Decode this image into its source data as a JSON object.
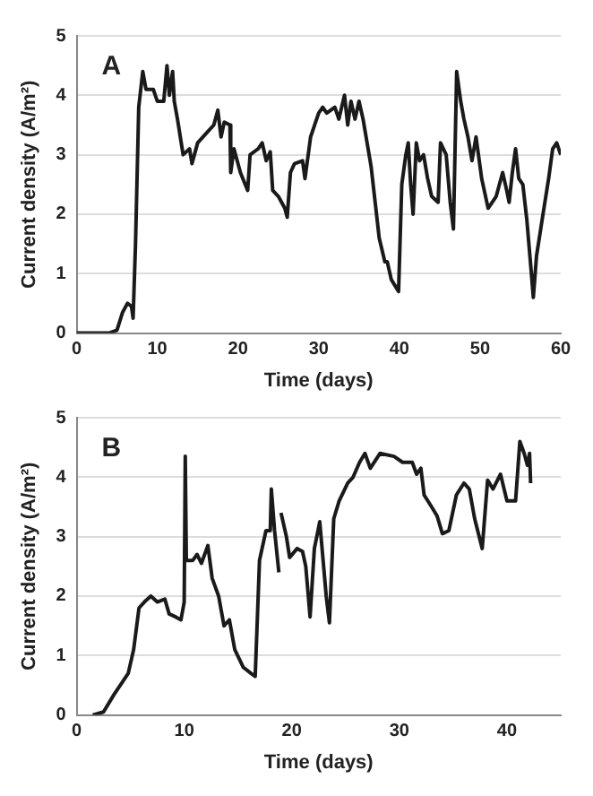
{
  "chart_data": [
    {
      "type": "line",
      "xlabel": "Time (days)",
      "ylabel": "Current density (A/m²)",
      "annotations": [
        "A"
      ],
      "xlim": [
        0,
        60
      ],
      "xticks": [
        0,
        10,
        20,
        30,
        40,
        50,
        60
      ],
      "ylim": [
        0,
        5
      ],
      "yticks": [
        0,
        1,
        2,
        3,
        4,
        5
      ],
      "grid": "y",
      "legend": false,
      "marker": "none",
      "line_style": "solid",
      "series": [
        {
          "color": "#1a1a1a",
          "x": [
            0,
            4,
            5,
            5.7,
            6.3,
            6.8,
            7,
            7.3,
            7.7,
            8.2,
            8.6,
            9.5,
            10,
            10.8,
            11.2,
            11.5,
            11.9,
            12.1,
            12.5,
            13.2,
            14,
            14.3,
            15,
            16,
            17,
            17.5,
            17.9,
            18.3,
            19,
            19.1,
            19.5,
            20.3,
            21.2,
            21.5,
            22.5,
            23,
            23.5,
            24,
            24.3,
            25,
            25.8,
            26.1,
            26.5,
            27,
            28,
            28.3,
            29,
            29.5,
            30,
            30.5,
            31,
            32,
            32.5,
            33.2,
            33.6,
            34,
            34.5,
            35,
            35.5,
            36.5,
            37.5,
            38.2,
            38.5,
            39,
            39.9,
            40.3,
            40.8,
            41.1,
            41.4,
            41.7,
            42.1,
            42.5,
            43,
            43.5,
            44,
            44.8,
            45.1,
            45.8,
            46.3,
            46.7,
            47.1,
            47.6,
            48,
            48.5,
            49,
            49.5,
            50.2,
            51,
            52,
            52.8,
            53.3,
            53.6,
            54,
            54.4,
            54.8,
            55.3,
            55.8,
            56.3,
            56.6,
            57,
            57.8,
            58.5,
            59,
            59.5,
            60
          ],
          "values": [
            0,
            0,
            0.05,
            0.35,
            0.5,
            0.45,
            0.25,
            1.5,
            3.8,
            4.4,
            4.1,
            4.1,
            3.9,
            3.9,
            4.5,
            4,
            4.4,
            3.9,
            3.6,
            3,
            3.1,
            2.85,
            3.2,
            3.35,
            3.5,
            3.75,
            3.3,
            3.55,
            3.5,
            2.7,
            3.1,
            2.7,
            2.4,
            3,
            3.1,
            3.2,
            2.9,
            3.05,
            2.4,
            2.3,
            2.1,
            1.95,
            2.7,
            2.85,
            2.9,
            2.6,
            3.3,
            3.5,
            3.7,
            3.8,
            3.7,
            3.8,
            3.6,
            4,
            3.5,
            3.9,
            3.6,
            3.9,
            3.6,
            2.8,
            1.6,
            1.2,
            1.2,
            0.9,
            0.7,
            2.5,
            3,
            3.2,
            2.5,
            2,
            3.2,
            2.9,
            3,
            2.6,
            2.3,
            2.2,
            3.2,
            3,
            2.2,
            1.75,
            4.4,
            3.9,
            3.6,
            3.3,
            2.9,
            3.3,
            2.6,
            2.1,
            2.3,
            2.7,
            2.4,
            2.2,
            2.7,
            3.1,
            2.6,
            2.5,
            1.9,
            1.1,
            0.6,
            1.3,
            2,
            2.6,
            3.1,
            3.2,
            3
          ]
        }
      ]
    },
    {
      "type": "line",
      "xlabel": "Time (days)",
      "ylabel": "Current density (A/m²)",
      "annotations": [
        "B"
      ],
      "xlim": [
        0,
        45
      ],
      "xticks": [
        0,
        10,
        20,
        30,
        40
      ],
      "ylim": [
        0,
        5
      ],
      "yticks": [
        0,
        1,
        2,
        3,
        4,
        5
      ],
      "grid": "y",
      "legend": false,
      "marker": "none",
      "line_style": "solid",
      "series": [
        {
          "color": "#1a1a1a",
          "x": [
            1.5,
            2.5,
            3.5,
            4.8,
            5.3,
            5.8,
            6.3,
            6.9,
            7.5,
            8.2,
            8.6,
            9.2,
            9.7,
            10,
            10.1,
            10.2,
            10.8,
            11.2,
            11.6,
            12.2,
            12.6,
            13.2,
            13.7,
            14.2,
            14.7,
            15.5,
            16.2,
            16.6,
            17,
            17.6,
            18,
            18.1,
            18.4,
            18.8,
            18.9,
            19,
            19.5,
            19.8,
            20.5,
            21,
            21.3,
            21.7,
            22.1,
            22.6,
            23.2,
            23.5,
            23.9,
            24.4,
            25.2,
            25.7,
            26.3,
            26.8,
            27.3,
            28.2,
            29.5,
            30.3,
            31.2,
            31.6,
            32,
            32.3,
            33,
            33.5,
            34,
            34.6,
            35.3,
            36,
            36.5,
            37,
            37.7,
            38.2,
            38.7,
            39.4,
            40,
            40.8,
            41.2,
            41.6,
            41.9,
            42.1,
            42.2
          ],
          "values": [
            0,
            0.05,
            0.35,
            0.7,
            1.1,
            1.8,
            1.9,
            2,
            1.9,
            1.95,
            1.7,
            1.65,
            1.6,
            1.9,
            4.35,
            2.6,
            2.6,
            2.7,
            2.55,
            2.85,
            2.3,
            2,
            1.5,
            1.6,
            1.1,
            0.8,
            0.7,
            0.65,
            2.6,
            3.1,
            3.1,
            3.8,
            3.1,
            2.4,
            null,
            3.4,
            3,
            2.65,
            2.8,
            2.75,
            2.5,
            1.65,
            2.8,
            3.25,
            2,
            1.55,
            3.3,
            3.6,
            3.9,
            4,
            4.25,
            4.4,
            4.15,
            4.4,
            4.35,
            4.25,
            4.25,
            4.05,
            4.15,
            3.7,
            3.5,
            3.35,
            3.05,
            3.1,
            3.7,
            3.9,
            3.8,
            3.3,
            2.8,
            3.95,
            3.8,
            4.05,
            3.6,
            3.6,
            4.6,
            4.4,
            4.2,
            4.4,
            3.9
          ]
        }
      ]
    }
  ]
}
